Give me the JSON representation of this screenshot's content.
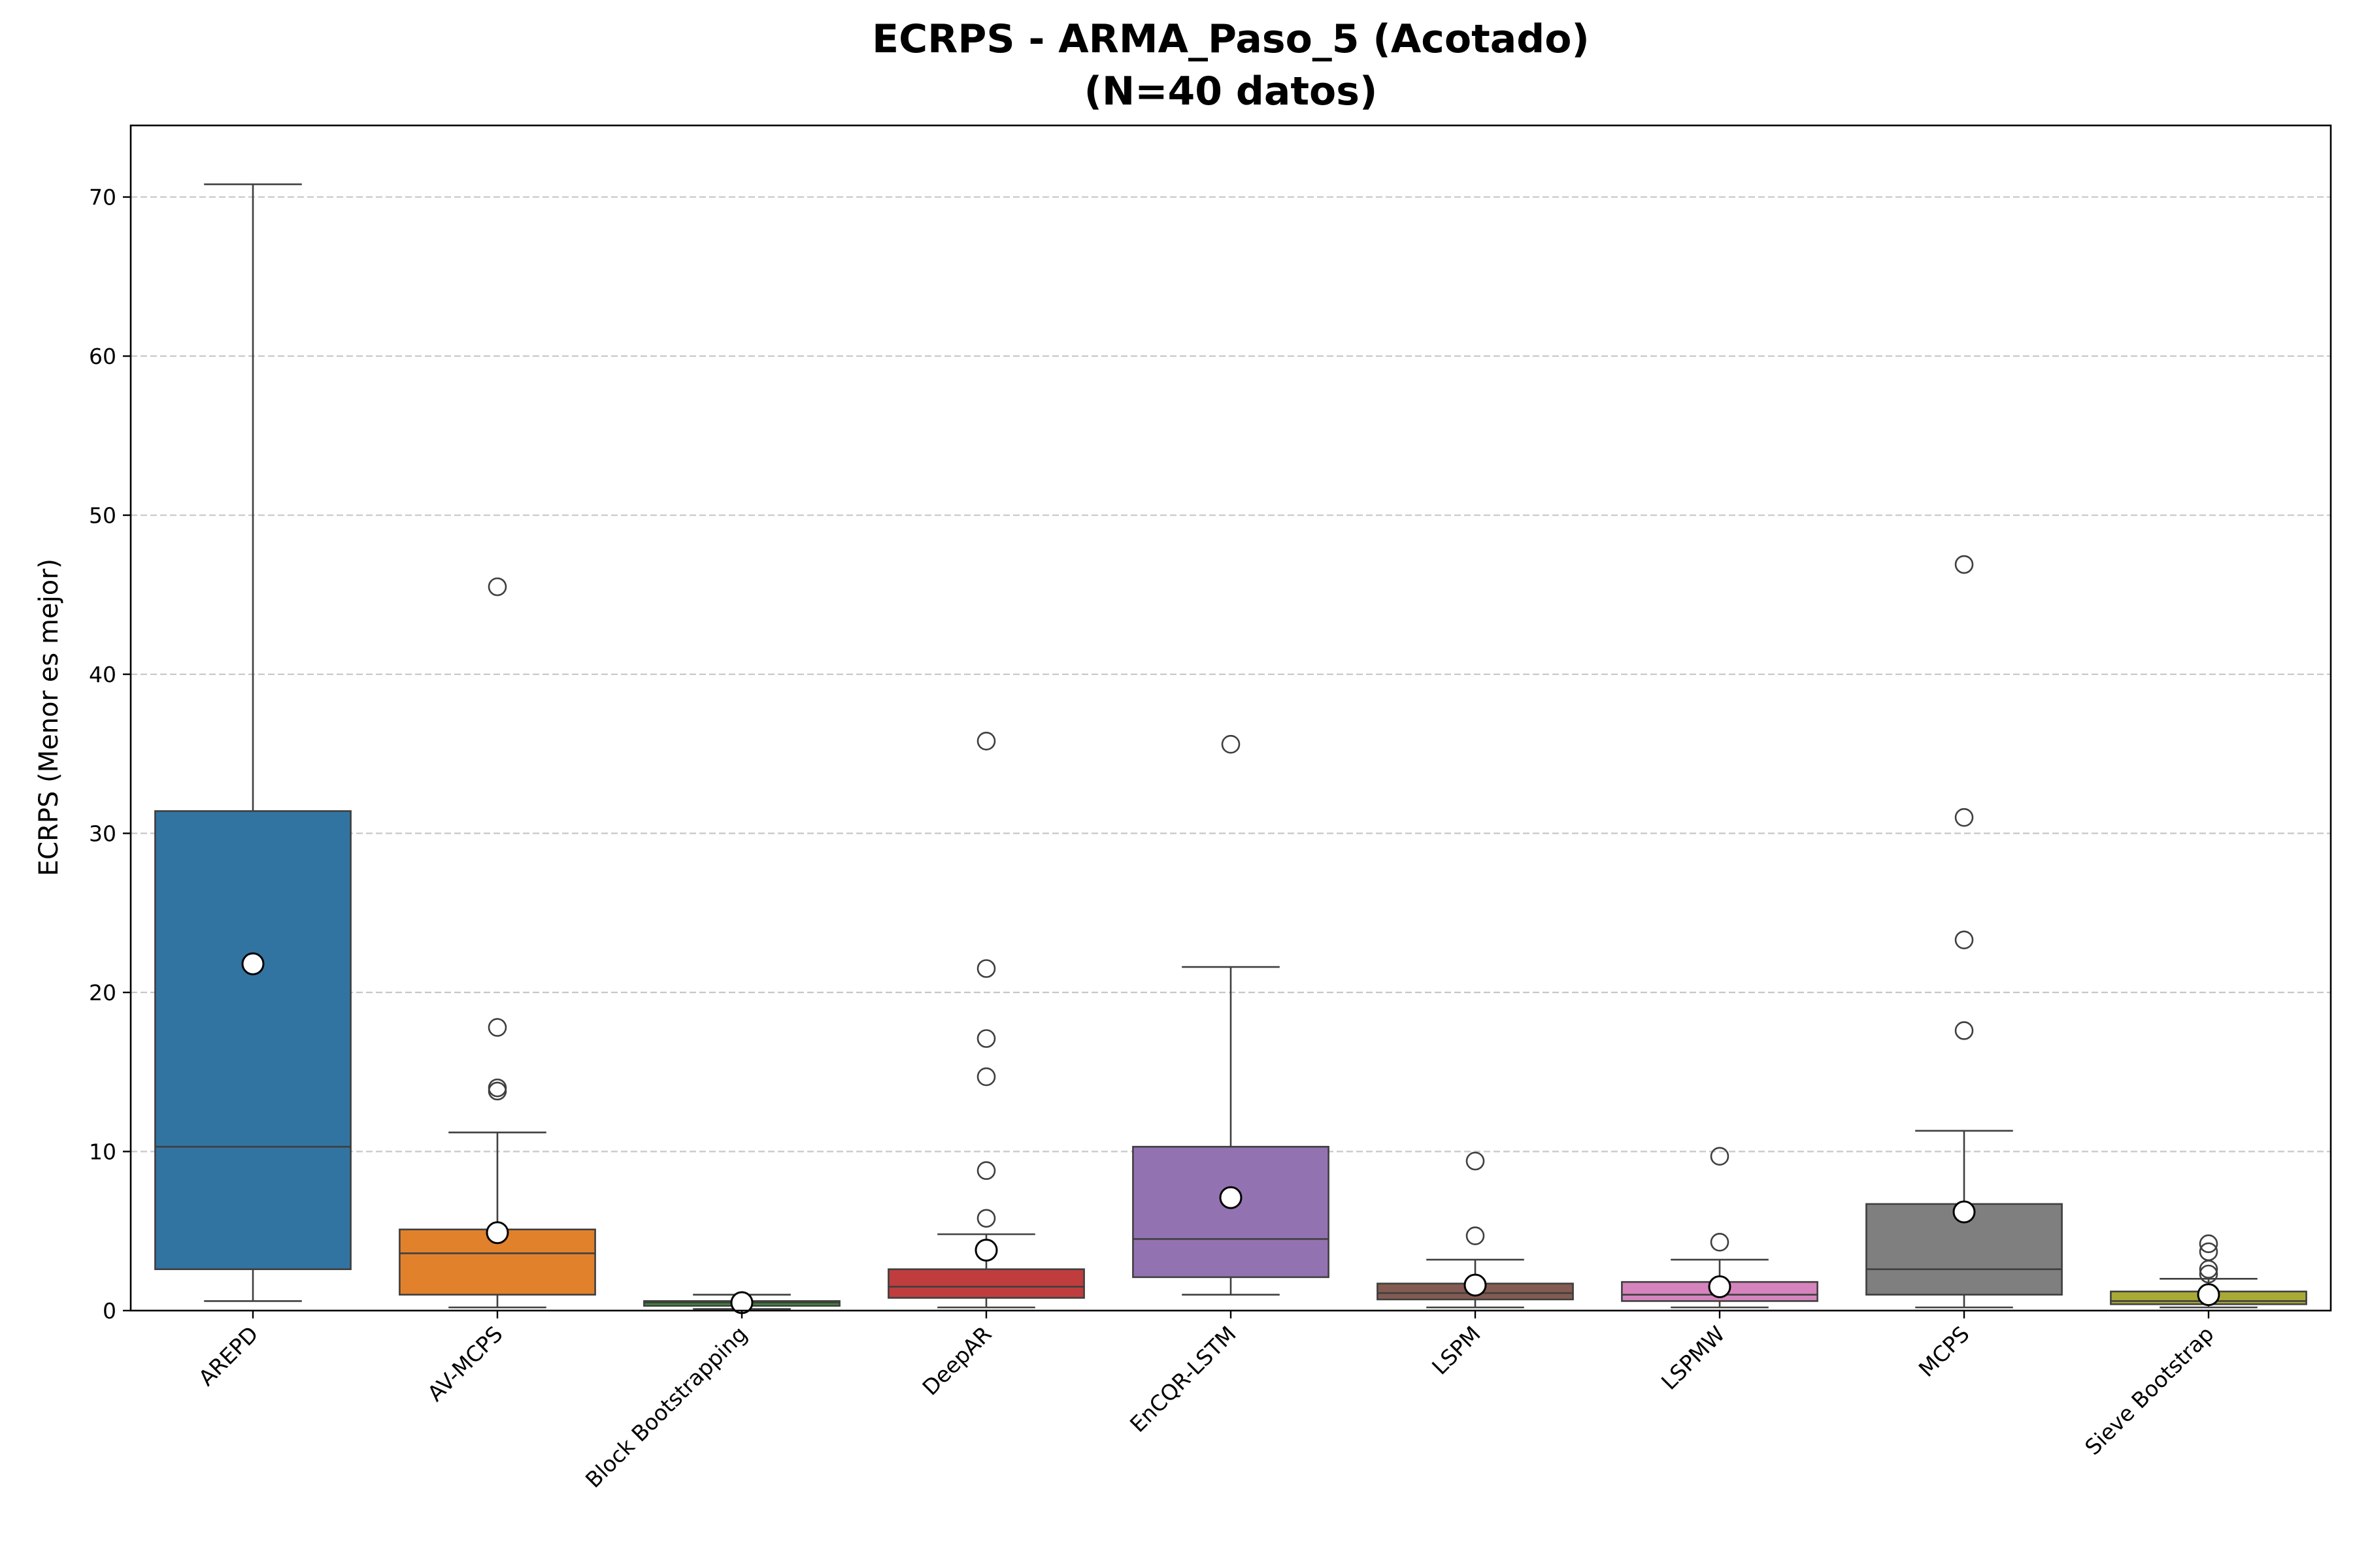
{
  "chart_data": {
    "type": "box",
    "title_lines": [
      "ECRPS - ARMA_Paso_5 (Acotado)",
      "(N=40 datos)"
    ],
    "xlabel": "",
    "ylabel": "ECRPS (Menor es mejor)",
    "ylim": [
      0,
      74.5
    ],
    "yticks": [
      0,
      10,
      20,
      30,
      40,
      50,
      60,
      70
    ],
    "grid": "y dashed",
    "legend": "none",
    "categories": [
      "AREPD",
      "AV-MCPS",
      "Block Bootstrapping",
      "DeepAR",
      "EnCQR-LSTM",
      "LSPM",
      "LSPMW",
      "MCPS",
      "Sieve Bootstrap"
    ],
    "series": [
      {
        "category": "AREPD",
        "color": "#3274a1",
        "whisker_low": 0.6,
        "q1": 2.6,
        "median": 10.3,
        "q3": 31.4,
        "whisker_high": 70.8,
        "mean": 21.8,
        "outliers": []
      },
      {
        "category": "AV-MCPS",
        "color": "#e1812c",
        "whisker_low": 0.2,
        "q1": 1.0,
        "median": 3.6,
        "q3": 5.1,
        "whisker_high": 11.2,
        "mean": 4.9,
        "outliers": [
          13.8,
          14.0,
          17.8,
          45.5
        ]
      },
      {
        "category": "Block Bootstrapping",
        "color": "#3a923a",
        "whisker_low": 0.1,
        "q1": 0.3,
        "median": 0.5,
        "q3": 0.6,
        "whisker_high": 1.0,
        "mean": 0.5,
        "outliers": []
      },
      {
        "category": "DeepAR",
        "color": "#c03d3e",
        "whisker_low": 0.2,
        "q1": 0.8,
        "median": 1.5,
        "q3": 2.6,
        "whisker_high": 4.8,
        "mean": 3.8,
        "outliers": [
          5.8,
          8.8,
          14.7,
          17.1,
          21.5,
          35.8
        ]
      },
      {
        "category": "EnCQR-LSTM",
        "color": "#9372b2",
        "whisker_low": 1.0,
        "q1": 2.1,
        "median": 4.5,
        "q3": 10.3,
        "whisker_high": 21.6,
        "mean": 7.1,
        "outliers": [
          35.6
        ]
      },
      {
        "category": "LSPM",
        "color": "#845b53",
        "whisker_low": 0.2,
        "q1": 0.7,
        "median": 1.1,
        "q3": 1.7,
        "whisker_high": 3.2,
        "mean": 1.6,
        "outliers": [
          4.7,
          9.4
        ]
      },
      {
        "category": "LSPMW",
        "color": "#d684bd",
        "whisker_low": 0.2,
        "q1": 0.6,
        "median": 1.0,
        "q3": 1.8,
        "whisker_high": 3.2,
        "mean": 1.5,
        "outliers": [
          4.3,
          9.7
        ]
      },
      {
        "category": "MCPS",
        "color": "#7f7f7f",
        "whisker_low": 0.2,
        "q1": 1.0,
        "median": 2.6,
        "q3": 6.7,
        "whisker_high": 11.3,
        "mean": 6.2,
        "outliers": [
          17.6,
          23.3,
          31.0,
          46.9
        ]
      },
      {
        "category": "Sieve Bootstrap",
        "color": "#a9aa35",
        "whisker_low": 0.2,
        "q1": 0.4,
        "median": 0.6,
        "q3": 1.2,
        "whisker_high": 2.0,
        "mean": 1.0,
        "outliers": [
          2.3,
          2.6,
          3.7,
          4.2
        ]
      }
    ]
  }
}
